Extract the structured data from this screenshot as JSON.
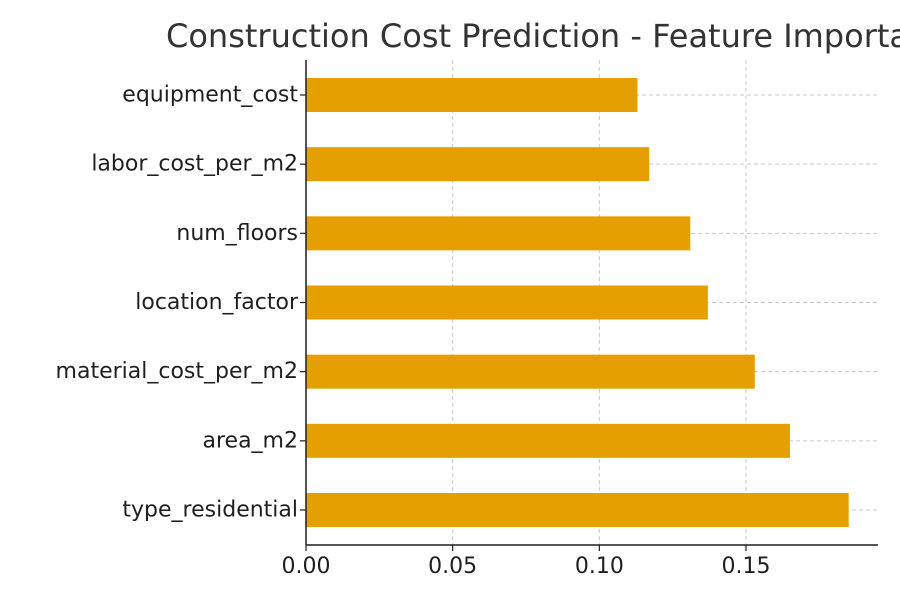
{
  "chart_data": {
    "type": "bar",
    "orientation": "horizontal",
    "title": "Construction Cost Prediction - Feature Importance",
    "xlabel": "",
    "ylabel": "",
    "categories": [
      "equipment_cost",
      "labor_cost_per_m2",
      "num_floors",
      "location_factor",
      "material_cost_per_m2",
      "area_m2",
      "type_residential"
    ],
    "values": [
      0.113,
      0.117,
      0.131,
      0.137,
      0.153,
      0.165,
      0.185
    ],
    "xlim": [
      0,
      0.195
    ],
    "xticks": [
      0.0,
      0.05,
      0.1,
      0.15
    ],
    "xtick_labels": [
      "0.00",
      "0.05",
      "0.10",
      "0.15"
    ],
    "grid": true,
    "bar_color": "#E59F00"
  }
}
